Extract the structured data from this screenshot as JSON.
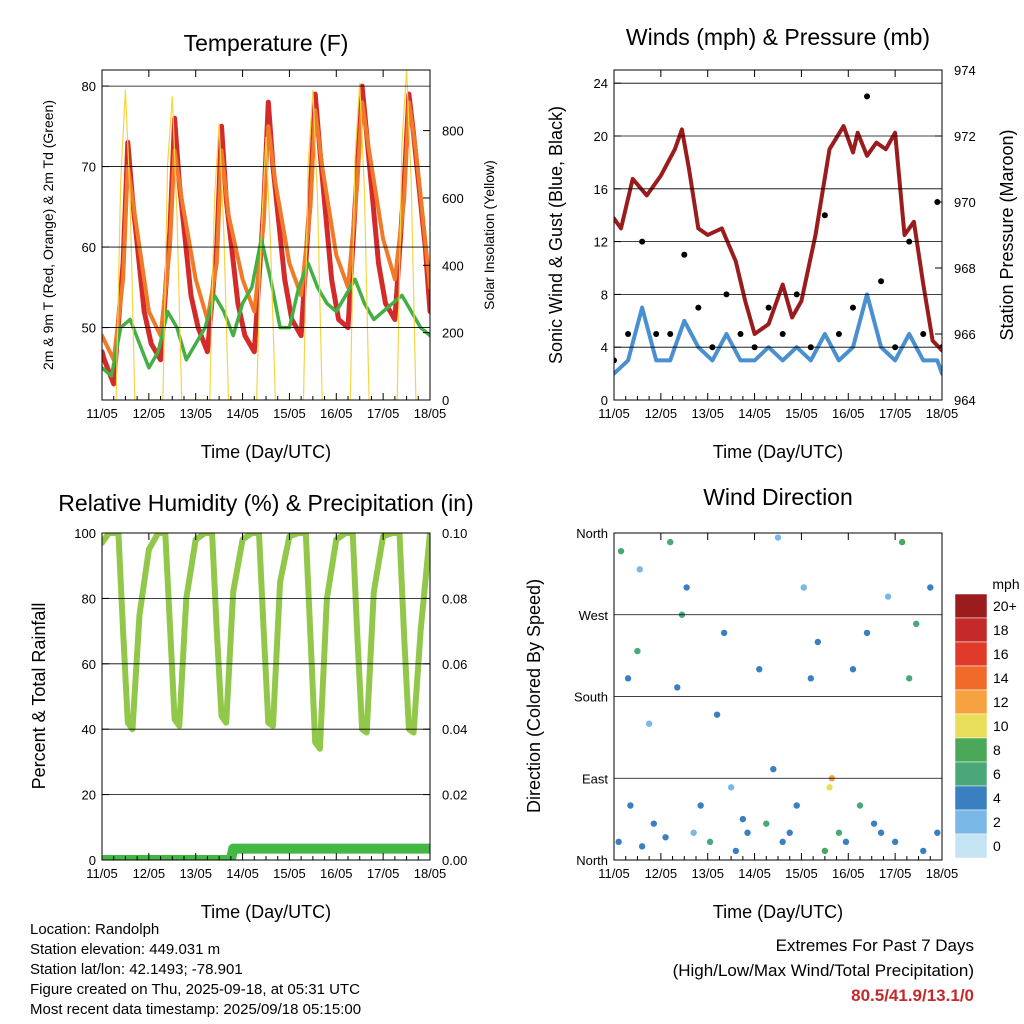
{
  "x_ticks": [
    "11/05",
    "12/05",
    "13/05",
    "14/05",
    "15/05",
    "16/05",
    "17/05",
    "18/05"
  ],
  "x_label": "Time (Day/UTC)",
  "station": {
    "location": "Location: Randolph",
    "elevation": "Station elevation: 449.031 m",
    "latlon": "Station lat/lon: 42.1493; -78.901",
    "created": "Figure created on Thu, 2025-09-18, at 05:31 UTC",
    "recent": "Most recent data timestamp: 2025/09/18 05:15:00"
  },
  "extremes": {
    "title": "Extremes For Past 7 Days",
    "subtitle": "(High/Low/Max Wind/Total Precipitation)",
    "value": "80.5/41.9/13.1/0"
  },
  "colors": {
    "temp_2m": "#d42a2a",
    "temp_9m": "#f07a28",
    "dewpoint": "#44b044",
    "solar": "#f5d442",
    "wind": "#4a90d0",
    "gust": "#000000",
    "pressure": "#9b1c1c",
    "rh": "#92c84a",
    "precip": "#44b844"
  },
  "chart_data": [
    {
      "type": "line",
      "title": "Temperature (F)",
      "xlabel": "Time (Day/UTC)",
      "ylabel": "2m & 9m T (Red, Orange) & 2m Td (Green)",
      "ylabel_right": "Solar Insolation (Yellow)",
      "x_range_days": [
        0,
        7
      ],
      "ylim": [
        41,
        82
      ],
      "yticks": [
        50,
        60,
        70,
        80
      ],
      "ylim_right": [
        0,
        980
      ],
      "yticks_right": [
        0,
        200,
        400,
        600,
        800
      ],
      "series": [
        {
          "name": "2m T",
          "color": "#d42a2a",
          "x": [
            0,
            0.05,
            0.25,
            0.45,
            0.55,
            0.65,
            0.9,
            1.05,
            1.25,
            1.45,
            1.55,
            1.65,
            1.9,
            2.05,
            2.25,
            2.45,
            2.55,
            2.65,
            2.9,
            3.05,
            3.25,
            3.45,
            3.55,
            3.65,
            3.9,
            4.05,
            4.25,
            4.45,
            4.55,
            4.65,
            4.9,
            5.05,
            5.25,
            5.45,
            5.55,
            5.65,
            5.9,
            6.05,
            6.25,
            6.45,
            6.55,
            6.65,
            6.9,
            7.0
          ],
          "y": [
            47,
            46,
            43,
            58,
            73,
            66,
            52,
            48,
            46,
            62,
            76,
            68,
            54,
            50,
            47,
            60,
            75,
            66,
            53,
            49,
            47,
            65,
            78,
            70,
            56,
            51,
            49,
            67,
            79,
            72,
            56,
            51,
            50,
            70,
            80,
            74,
            58,
            53,
            51,
            68,
            79,
            74,
            60,
            52
          ]
        },
        {
          "name": "9m T",
          "color": "#f07a28",
          "x": [
            0,
            0.25,
            0.45,
            0.55,
            0.7,
            1.0,
            1.25,
            1.45,
            1.55,
            1.7,
            2.0,
            2.25,
            2.45,
            2.55,
            2.7,
            3.0,
            3.25,
            3.45,
            3.55,
            3.7,
            4.0,
            4.25,
            4.45,
            4.55,
            4.7,
            5.0,
            5.25,
            5.45,
            5.55,
            5.7,
            6.0,
            6.25,
            6.45,
            6.55,
            6.7,
            7.0
          ],
          "y": [
            49,
            46,
            56,
            70,
            64,
            52,
            49,
            60,
            72,
            66,
            56,
            51,
            58,
            72,
            64,
            56,
            52,
            63,
            75,
            68,
            58,
            54,
            65,
            77,
            70,
            59,
            55,
            68,
            78,
            72,
            61,
            56,
            66,
            78,
            72,
            55
          ]
        },
        {
          "name": "2m Td",
          "color": "#44b044",
          "x": [
            0,
            0.2,
            0.4,
            0.6,
            0.8,
            1.0,
            1.2,
            1.4,
            1.6,
            1.8,
            2.0,
            2.2,
            2.4,
            2.6,
            2.8,
            3.0,
            3.2,
            3.4,
            3.6,
            3.8,
            4.0,
            4.2,
            4.4,
            4.6,
            4.8,
            5.0,
            5.2,
            5.4,
            5.6,
            5.8,
            6.0,
            6.2,
            6.4,
            6.6,
            6.8,
            7.0
          ],
          "y": [
            45,
            44,
            50,
            51,
            48,
            45,
            47,
            52,
            50,
            46,
            48,
            50,
            54,
            52,
            49,
            53,
            55,
            61,
            56,
            50,
            50,
            55,
            58,
            55,
            53,
            52,
            54,
            56,
            53,
            51,
            52,
            53,
            54,
            52,
            50,
            49
          ]
        },
        {
          "name": "Solar Insolation",
          "color": "#f5d442",
          "axis": "right",
          "x": [
            0.3,
            0.4,
            0.5,
            0.6,
            0.7,
            1.3,
            1.4,
            1.5,
            1.6,
            1.7,
            2.3,
            2.4,
            2.5,
            2.6,
            2.7,
            3.3,
            3.4,
            3.5,
            3.6,
            3.7,
            4.3,
            4.4,
            4.5,
            4.6,
            4.7,
            5.3,
            5.4,
            5.5,
            5.6,
            5.7,
            6.3,
            6.4,
            6.5,
            6.6,
            6.7
          ],
          "y": [
            0,
            650,
            920,
            600,
            0,
            0,
            700,
            900,
            550,
            0,
            0,
            600,
            820,
            500,
            0,
            0,
            500,
            780,
            450,
            0,
            0,
            700,
            920,
            600,
            0,
            0,
            720,
            940,
            620,
            0,
            0,
            760,
            980,
            640,
            0
          ]
        }
      ]
    },
    {
      "type": "line",
      "title": "Winds (mph) & Pressure (mb)",
      "xlabel": "Time (Day/UTC)",
      "ylabel": "Sonic Wind & Gust (Blue, Black)",
      "ylabel_right": "Station Pressure (Maroon)",
      "x_range_days": [
        0,
        7
      ],
      "ylim": [
        0,
        25
      ],
      "yticks": [
        0,
        4,
        8,
        12,
        16,
        20,
        24
      ],
      "ylim_right": [
        964,
        974
      ],
      "yticks_right": [
        964,
        966,
        968,
        970,
        972,
        974
      ],
      "series": [
        {
          "name": "Sonic Wind",
          "color": "#4a90d0",
          "x": [
            0,
            0.3,
            0.6,
            0.9,
            1.2,
            1.5,
            1.8,
            2.1,
            2.4,
            2.7,
            3.0,
            3.3,
            3.6,
            3.9,
            4.2,
            4.5,
            4.8,
            5.1,
            5.4,
            5.7,
            6.0,
            6.3,
            6.6,
            6.9,
            7.0
          ],
          "y": [
            2,
            3,
            7,
            3,
            3,
            6,
            4,
            3,
            5,
            3,
            3,
            4,
            3,
            4,
            3,
            5,
            3,
            4,
            8,
            4,
            3,
            5,
            3,
            3,
            2
          ]
        },
        {
          "name": "Gust",
          "color": "#000000",
          "x": [
            0,
            0.3,
            0.6,
            0.9,
            1.2,
            1.5,
            1.8,
            2.1,
            2.4,
            2.7,
            3.0,
            3.3,
            3.6,
            3.9,
            4.2,
            4.5,
            4.8,
            5.1,
            5.4,
            5.7,
            6.0,
            6.3,
            6.6,
            6.9,
            7.0
          ],
          "y": [
            3,
            5,
            12,
            5,
            5,
            11,
            7,
            4,
            8,
            5,
            4,
            7,
            5,
            8,
            4,
            14,
            5,
            7,
            23,
            9,
            4,
            12,
            5,
            15,
            4
          ]
        },
        {
          "name": "Station Pressure",
          "color": "#9b1c1c",
          "axis": "right",
          "x": [
            0,
            0.15,
            0.4,
            0.7,
            1.0,
            1.3,
            1.45,
            1.6,
            1.8,
            2.0,
            2.3,
            2.6,
            2.8,
            3.0,
            3.3,
            3.6,
            3.8,
            4.0,
            4.3,
            4.6,
            4.9,
            5.1,
            5.2,
            5.4,
            5.6,
            5.8,
            6.0,
            6.2,
            6.4,
            6.6,
            6.8,
            7.0
          ],
          "y": [
            969.5,
            969.2,
            970.7,
            970.2,
            970.8,
            971.6,
            972.2,
            971.0,
            969.2,
            969.0,
            969.2,
            968.2,
            967.0,
            966.0,
            966.3,
            967.5,
            966.5,
            967.0,
            969.0,
            971.6,
            972.3,
            971.5,
            972.1,
            971.4,
            971.8,
            971.6,
            972.1,
            969.0,
            969.4,
            967.5,
            965.8,
            965.5
          ]
        }
      ]
    },
    {
      "type": "line",
      "title": "Relative Humidity (%) & Precipitation (in)",
      "xlabel": "Time (Day/UTC)",
      "ylabel": "Percent & Total Rainfall",
      "x_range_days": [
        0,
        7
      ],
      "ylim": [
        0,
        100
      ],
      "yticks": [
        0,
        20,
        40,
        60,
        80,
        100
      ],
      "ylim_right": [
        0,
        0.1
      ],
      "yticks_right": [
        "0.00",
        "0.02",
        "0.04",
        "0.06",
        "0.08",
        "0.10"
      ],
      "series": [
        {
          "name": "Relative Humidity",
          "color": "#92c84a",
          "x": [
            0,
            0.05,
            0.15,
            0.25,
            0.35,
            0.45,
            0.55,
            0.65,
            0.8,
            1.0,
            1.2,
            1.35,
            1.45,
            1.55,
            1.65,
            1.8,
            2.0,
            2.2,
            2.35,
            2.45,
            2.55,
            2.65,
            2.8,
            3.0,
            3.2,
            3.35,
            3.45,
            3.55,
            3.65,
            3.8,
            4.0,
            4.2,
            4.35,
            4.45,
            4.55,
            4.65,
            4.8,
            5.0,
            5.2,
            5.35,
            5.45,
            5.55,
            5.65,
            5.8,
            6.0,
            6.2,
            6.35,
            6.45,
            6.55,
            6.65,
            6.8,
            7.0
          ],
          "y": [
            97,
            98,
            100,
            100,
            100,
            70,
            42,
            40,
            75,
            95,
            100,
            100,
            72,
            43,
            41,
            80,
            98,
            100,
            100,
            70,
            44,
            42,
            82,
            98,
            100,
            100,
            70,
            42,
            41,
            85,
            99,
            100,
            100,
            68,
            36,
            34,
            80,
            98,
            100,
            100,
            68,
            40,
            39,
            82,
            99,
            100,
            100,
            68,
            40,
            39,
            70,
            100
          ]
        },
        {
          "name": "Total Rainfall",
          "color": "#44b844",
          "axis": "right",
          "x": [
            0,
            2.75,
            2.8,
            7.0
          ],
          "y": [
            0.0,
            0.0,
            0.0035,
            0.0035
          ]
        }
      ]
    },
    {
      "type": "scatter",
      "title": "Wind Direction",
      "xlabel": "Time (Day/UTC)",
      "ylabel": "Direction (Colored By Speed)",
      "x_range_days": [
        0,
        7
      ],
      "yticks": [
        "North",
        "East",
        "South",
        "West",
        "North"
      ],
      "legend": {
        "title": "mph",
        "labels": [
          "20+",
          "18",
          "16",
          "14",
          "12",
          "10",
          "8",
          "6",
          "4",
          "2",
          "0"
        ],
        "colors": [
          "#9b1c1c",
          "#c42a2a",
          "#e03a2a",
          "#f06a2a",
          "#f7a240",
          "#e8de5a",
          "#4aa858",
          "#4aa878",
          "#3a7fc0",
          "#7ab8e8",
          "#c4e4f4"
        ]
      },
      "series": [
        {
          "name": "direction",
          "x": [
            0.1,
            0.15,
            0.3,
            0.35,
            0.5,
            0.55,
            0.6,
            0.75,
            0.85,
            1.1,
            1.2,
            1.35,
            1.45,
            1.55,
            1.7,
            1.85,
            2.05,
            2.2,
            2.35,
            2.5,
            2.6,
            2.75,
            2.85,
            3.1,
            3.25,
            3.4,
            3.5,
            3.6,
            3.75,
            3.9,
            4.05,
            4.2,
            4.35,
            4.5,
            4.6,
            4.65,
            4.8,
            4.95,
            5.1,
            5.25,
            5.4,
            5.55,
            5.7,
            5.85,
            6.0,
            6.15,
            6.3,
            6.45,
            6.6,
            6.75,
            6.9
          ],
          "deg": [
            20,
            340,
            200,
            60,
            230,
            320,
            15,
            150,
            40,
            25,
            350,
            190,
            270,
            300,
            30,
            60,
            20,
            160,
            250,
            80,
            10,
            45,
            30,
            210,
            40,
            100,
            355,
            20,
            30,
            60,
            300,
            200,
            240,
            10,
            80,
            90,
            30,
            20,
            210,
            60,
            250,
            40,
            30,
            290,
            20,
            350,
            200,
            260,
            10,
            300,
            30
          ],
          "speed": [
            3,
            5,
            3,
            4,
            5,
            2,
            3,
            2,
            4,
            4,
            6,
            4,
            6,
            3,
            2,
            3,
            5,
            3,
            4,
            2,
            3,
            4,
            3,
            3,
            5,
            4,
            2,
            3,
            4,
            3,
            2,
            4,
            3,
            7,
            10,
            12,
            5,
            4,
            3,
            5,
            3,
            4,
            3,
            2,
            4,
            7,
            5,
            6,
            4,
            3,
            3
          ]
        }
      ]
    }
  ]
}
